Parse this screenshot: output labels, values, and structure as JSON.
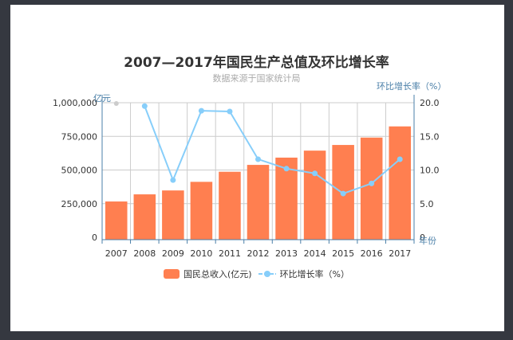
{
  "title": "2007—2017年国民生产总值及环比增长率",
  "subtitle": "数据来源于国家统计局",
  "axes": {
    "left_name": "亿元",
    "right_name": "环比增长率（%）",
    "x_name": "年份",
    "left_ticks": [
      "0",
      "250,000",
      "500,000",
      "750,000",
      "1,000,000"
    ],
    "right_ticks": [
      "0",
      "5.0",
      "10.0",
      "15.0",
      "20.0"
    ]
  },
  "legend": {
    "bar_label": "国民总收入(亿元)",
    "line_label": "环比增长率（%）"
  },
  "colors": {
    "bar": "#ff7f50",
    "line": "#87cefa",
    "axis": "#4a7fa8",
    "grid": "#cccccc",
    "missing_point": "#cccccc"
  },
  "chart_data": {
    "type": "bar+line",
    "title": "2007—2017年国民生产总值及环比增长率",
    "subtitle": "数据来源于国家统计局",
    "categories": [
      "2007",
      "2008",
      "2009",
      "2010",
      "2011",
      "2012",
      "2013",
      "2014",
      "2015",
      "2016",
      "2017"
    ],
    "xlabel": "年份",
    "series": [
      {
        "name": "国民总收入(亿元)",
        "type": "bar",
        "axis": "left",
        "values": [
          266000,
          319000,
          348000,
          412000,
          487000,
          538000,
          592000,
          644000,
          686000,
          741000,
          824000
        ]
      },
      {
        "name": "环比增长率（%）",
        "type": "line",
        "axis": "right",
        "values": [
          null,
          19.5,
          8.5,
          18.8,
          18.7,
          11.6,
          10.2,
          9.5,
          6.5,
          8.0,
          11.6
        ]
      }
    ],
    "ylabel_left": "亿元",
    "ylim_left": [
      0,
      1000000
    ],
    "ylabel_right": "环比增长率（%）",
    "ylim_right": [
      0,
      20
    ],
    "grid": true,
    "legend_position": "bottom"
  }
}
